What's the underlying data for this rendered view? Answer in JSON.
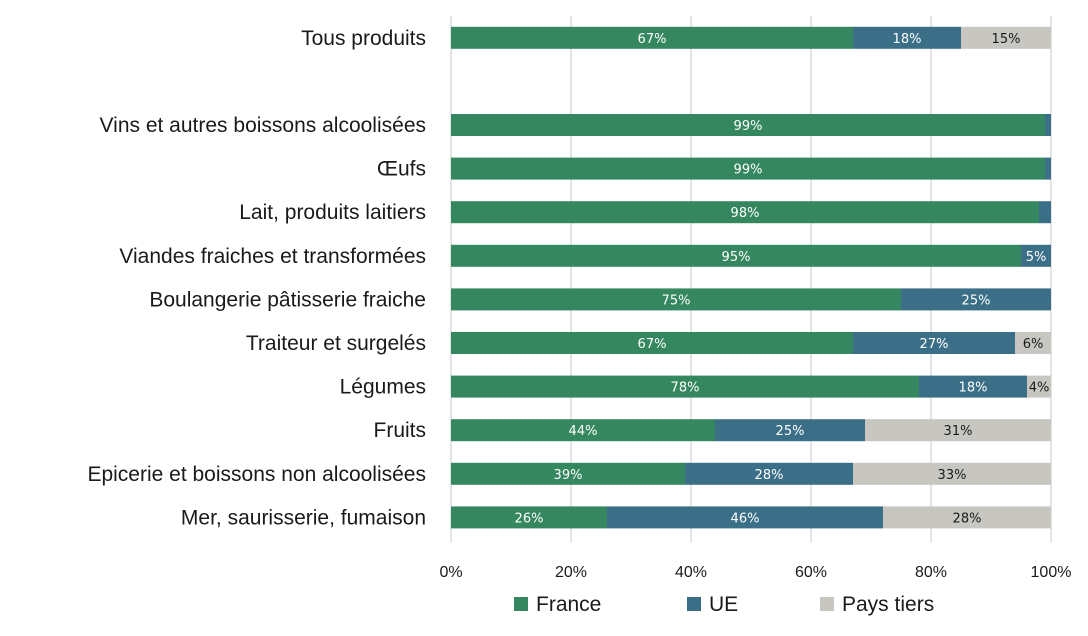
{
  "chart_data": {
    "type": "bar",
    "orientation": "horizontal",
    "stacked": "percent",
    "categories": [
      "Tous produits",
      "",
      "Vins et autres boissons alcoolisées",
      "Œufs",
      "Lait, produits laitiers",
      "Viandes fraiches et transformées",
      "Boulangerie pâtisserie fraiche",
      "Traiteur et surgelés",
      "Légumes",
      "Fruits",
      "Epicerie et boissons non alcoolisées",
      "Mer, saurisserie, fumaison"
    ],
    "series": [
      {
        "name": "France",
        "color": "#35875f",
        "values": [
          67,
          null,
          99,
          99,
          98,
          95,
          75,
          67,
          78,
          44,
          39,
          26
        ],
        "labels": [
          "67%",
          "",
          "99%",
          "99%",
          "98%",
          "95%",
          "75%",
          "67%",
          "78%",
          "44%",
          "39%",
          "26%"
        ]
      },
      {
        "name": "UE",
        "color": "#3a6f87",
        "values": [
          18,
          null,
          1,
          1,
          2,
          5,
          25,
          27,
          18,
          25,
          28,
          46
        ],
        "labels": [
          "18%",
          "",
          "",
          "",
          "",
          "5%",
          "25%",
          "27%",
          "18%",
          "25%",
          "28%",
          "46%"
        ]
      },
      {
        "name": "Pays tiers",
        "color": "#c8c6c0",
        "values": [
          15,
          null,
          0,
          0,
          0,
          0,
          0,
          6,
          4,
          31,
          33,
          28
        ],
        "labels": [
          "15%",
          "",
          "",
          "",
          "",
          "",
          "",
          "6%",
          "4%",
          "31%",
          "33%",
          "28%"
        ]
      }
    ],
    "xlim": [
      0,
      100
    ],
    "x_ticks": [
      "0%",
      "20%",
      "40%",
      "60%",
      "80%",
      "100%"
    ],
    "grid": true,
    "legend": "bottom",
    "xlabel": "",
    "ylabel": ""
  }
}
